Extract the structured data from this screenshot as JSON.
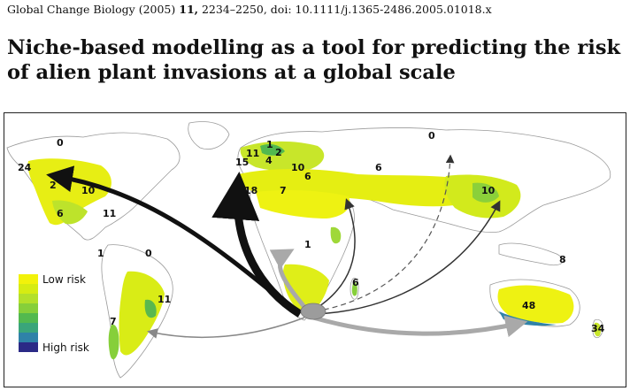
{
  "citation": {
    "journal": "Global Change Biology (2005)",
    "volume": "11,",
    "pages_doi": "2234–2250, doi: 10.1111/j.1365-2486.2005.01018.x"
  },
  "title": "Niche-based modelling as a tool for predicting the risk of alien plant invasions at a global scale",
  "figure": {
    "legend": {
      "low_label": "Low risk",
      "high_label": "High risk",
      "swatches": [
        "#f2f20a",
        "#d6ec12",
        "#b3e02a",
        "#86cf3a",
        "#52b94f",
        "#3aa57a",
        "#2f82a8",
        "#2b2a86"
      ]
    },
    "region_labels": [
      {
        "id": "n-america-north",
        "text": "0"
      },
      {
        "id": "alaska",
        "text": "24"
      },
      {
        "id": "california",
        "text": "2"
      },
      {
        "id": "usa-east",
        "text": "10"
      },
      {
        "id": "mexico",
        "text": "6"
      },
      {
        "id": "central-america",
        "text": "11"
      },
      {
        "id": "south-america-north",
        "text": "1"
      },
      {
        "id": "south-america-amazon",
        "text": "0"
      },
      {
        "id": "brazil-south",
        "text": "11"
      },
      {
        "id": "chile",
        "text": "7"
      },
      {
        "id": "scandinavia",
        "text": "1"
      },
      {
        "id": "uk",
        "text": "11"
      },
      {
        "id": "ireland",
        "text": "15"
      },
      {
        "id": "europe-central",
        "text": "4"
      },
      {
        "id": "europe-east",
        "text": "2"
      },
      {
        "id": "balkans",
        "text": "10"
      },
      {
        "id": "mediterranean",
        "text": "6"
      },
      {
        "id": "iberia",
        "text": "18"
      },
      {
        "id": "north-africa",
        "text": "7"
      },
      {
        "id": "central-asia",
        "text": "6"
      },
      {
        "id": "siberia",
        "text": "0"
      },
      {
        "id": "china",
        "text": "10"
      },
      {
        "id": "central-africa",
        "text": "1"
      },
      {
        "id": "madagascar",
        "text": "6"
      },
      {
        "id": "pacific",
        "text": "8"
      },
      {
        "id": "australia",
        "text": "48"
      },
      {
        "id": "new-zealand",
        "text": "34"
      }
    ]
  }
}
